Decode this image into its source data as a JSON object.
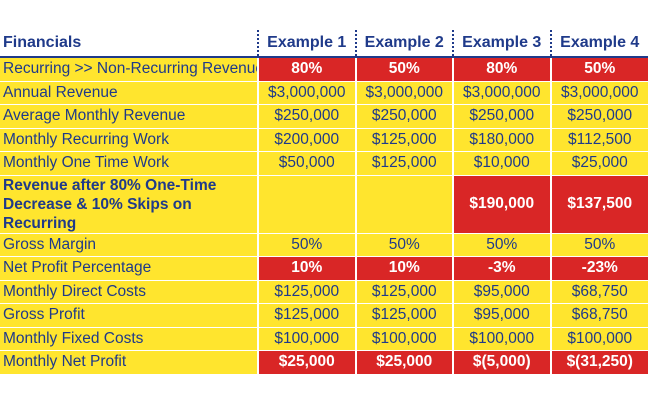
{
  "table": {
    "header": {
      "label": "Financials",
      "columns": [
        "Example 1",
        "Example 2",
        "Example 3",
        "Example 4"
      ]
    },
    "rows": [
      {
        "label": "Recurring >> Non-Recurring Revenue",
        "cells": [
          "80%",
          "50%",
          "80%",
          "50%"
        ]
      },
      {
        "label": "Annual Revenue",
        "cells": [
          "$3,000,000",
          "$3,000,000",
          "$3,000,000",
          "$3,000,000"
        ]
      },
      {
        "label": "Average Monthly Revenue",
        "cells": [
          "$250,000",
          "$250,000",
          "$250,000",
          "$250,000"
        ]
      },
      {
        "label": "Monthly Recurring Work",
        "cells": [
          "$200,000",
          "$125,000",
          "$180,000",
          "$112,500"
        ]
      },
      {
        "label": "Monthly One Time Work",
        "cells": [
          "$50,000",
          "$125,000",
          "$10,000",
          "$25,000"
        ]
      },
      {
        "label": "Revenue after 80% One-Time Decrease & 10% Skips on Recurring",
        "cells": [
          "",
          "",
          "$190,000",
          "$137,500"
        ]
      },
      {
        "label": "Gross Margin",
        "cells": [
          "50%",
          "50%",
          "50%",
          "50%"
        ]
      },
      {
        "label": "Net Profit Percentage",
        "cells": [
          "10%",
          "10%",
          "-3%",
          "-23%"
        ]
      },
      {
        "label": "Monthly Direct Costs",
        "cells": [
          "$125,000",
          "$125,000",
          "$95,000",
          "$68,750"
        ]
      },
      {
        "label": "Gross Profit",
        "cells": [
          "$125,000",
          "$125,000",
          "$95,000",
          "$68,750"
        ]
      },
      {
        "label": "Monthly Fixed Costs",
        "cells": [
          "$100,000",
          "$100,000",
          "$100,000",
          "$100,000"
        ]
      },
      {
        "label": "Monthly Net Profit",
        "cells": [
          "$25,000",
          "$25,000",
          "$(5,000)",
          "$(31,250)"
        ]
      }
    ]
  },
  "colors": {
    "yellow_fill": "#ffe52e",
    "red_fill": "#d92626",
    "text_blue": "#1f3a8a",
    "highlight_text": "#ffffff"
  }
}
